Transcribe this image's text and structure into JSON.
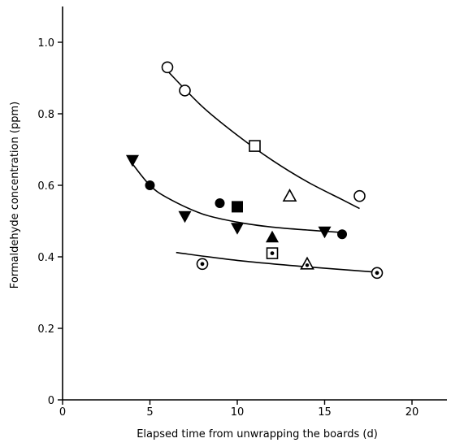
{
  "chart_data": {
    "type": "scatter",
    "xlabel": "Elapsed time from unwrapping the boards (d)",
    "ylabel": "Formaldehyde concentration (ppm)",
    "xlim": [
      0,
      22
    ],
    "ylim": [
      0,
      1.1
    ],
    "xticks": [
      0,
      5,
      10,
      15,
      20
    ],
    "yticks": [
      0,
      0.2,
      0.4,
      0.6,
      0.8,
      1.0
    ],
    "xtick_labels": [
      "0",
      "5",
      "10",
      "15",
      "20"
    ],
    "ytick_labels": [
      "0",
      "0.2",
      "0.4",
      "0.6",
      "0.8",
      "1.0"
    ],
    "grid": false,
    "series": [
      {
        "marker": "open-circle",
        "points": [
          [
            6,
            0.93
          ],
          [
            7,
            0.865
          ],
          [
            17,
            0.57
          ]
        ]
      },
      {
        "marker": "open-square",
        "points": [
          [
            11,
            0.71
          ]
        ]
      },
      {
        "marker": "open-triangle",
        "points": [
          [
            13,
            0.57
          ]
        ]
      },
      {
        "marker": "filled-circle",
        "points": [
          [
            5,
            0.6
          ],
          [
            9,
            0.55
          ],
          [
            16,
            0.463
          ]
        ]
      },
      {
        "marker": "filled-square",
        "points": [
          [
            10,
            0.54
          ]
        ]
      },
      {
        "marker": "filled-triangle-down",
        "points": [
          [
            4,
            0.67
          ],
          [
            7,
            0.513
          ],
          [
            10,
            0.48
          ],
          [
            15,
            0.47
          ]
        ]
      },
      {
        "marker": "filled-triangle",
        "points": [
          [
            12,
            0.455
          ]
        ]
      },
      {
        "marker": "dotted-circle",
        "points": [
          [
            8,
            0.38
          ],
          [
            18,
            0.355
          ]
        ]
      },
      {
        "marker": "dotted-square",
        "points": [
          [
            12,
            0.41
          ]
        ]
      },
      {
        "marker": "dotted-triangle",
        "points": [
          [
            14,
            0.38
          ]
        ]
      }
    ],
    "curves": [
      {
        "name": "upper-fit",
        "points": [
          [
            6,
            0.92
          ],
          [
            8,
            0.82
          ],
          [
            10,
            0.74
          ],
          [
            12,
            0.67
          ],
          [
            14,
            0.61
          ],
          [
            16,
            0.56
          ],
          [
            17,
            0.535
          ]
        ]
      },
      {
        "name": "middle-fit",
        "points": [
          [
            4,
            0.66
          ],
          [
            5,
            0.6
          ],
          [
            6,
            0.565
          ],
          [
            8,
            0.52
          ],
          [
            10,
            0.497
          ],
          [
            12,
            0.483
          ],
          [
            14,
            0.475
          ],
          [
            16,
            0.468
          ]
        ]
      },
      {
        "name": "lower-fit",
        "points": [
          [
            6.5,
            0.412
          ],
          [
            10,
            0.39
          ],
          [
            14,
            0.372
          ],
          [
            18,
            0.357
          ]
        ]
      }
    ]
  }
}
